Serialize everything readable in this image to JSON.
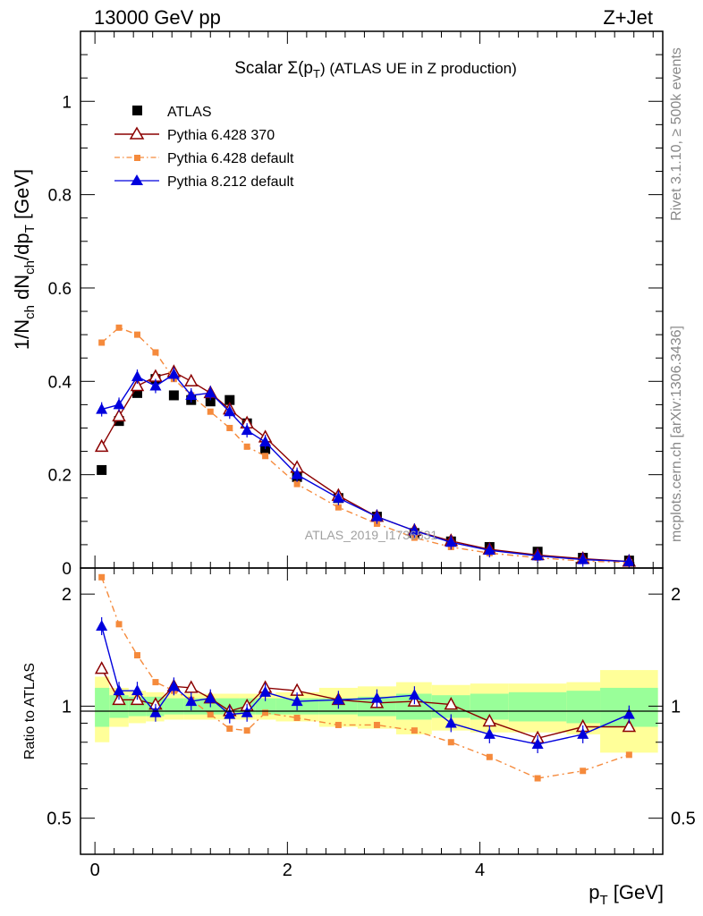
{
  "header": {
    "left": "13000 GeV pp",
    "right": "Z+Jet"
  },
  "side_labels": {
    "rivet": "Rivet 3.1.10, ≥ 500k events",
    "mcplots": "mcplots.cern.ch [arXiv:1306.3436]"
  },
  "watermark": "ATLAS_2019_I1736531",
  "colors": {
    "atlas": "#000000",
    "p6_370": "#8b0000",
    "p6_default": "#f58a3c",
    "p8": "#0000dd",
    "band_inner": "#99ff99",
    "band_outer": "#ffff99"
  },
  "chart_data": [
    {
      "type": "line",
      "panel": "main",
      "title": "Scalar Σ(pT) (ATLAS UE in Z production)",
      "title_main": "Scalar Σ(p",
      "title_sub": "T",
      "title_rest": ") (ATLAS UE in Z production)",
      "xlabel": "pT [GeV]",
      "xlabel_main": "p",
      "xlabel_sub": "T",
      "xlabel_rest": " [GeV]",
      "ylabel": "1/Nch dNch/dpT [GeV]",
      "xlim": [
        -0.15,
        5.9
      ],
      "ylim": [
        0,
        1.15
      ],
      "xticks": [
        0,
        2,
        4
      ],
      "yticks": [
        0.2,
        0.4,
        0.6,
        0.8,
        1
      ],
      "ytick_labels": [
        "0.2",
        "0.4",
        "0.6",
        "0.8",
        "1",
        "0"
      ],
      "x": [
        0.07,
        0.25,
        0.44,
        0.63,
        0.82,
        1.0,
        1.2,
        1.4,
        1.58,
        1.77,
        2.1,
        2.53,
        2.93,
        3.32,
        3.7,
        4.1,
        4.6,
        5.07,
        5.55
      ],
      "series": [
        {
          "name": "ATLAS",
          "key": "atlas",
          "marker": "square",
          "values": [
            0.21,
            0.315,
            0.375,
            0.405,
            0.37,
            0.36,
            0.357,
            0.36,
            0.31,
            0.255,
            0.195,
            0.15,
            0.11,
            0.075,
            0.057,
            0.045,
            0.035,
            0.022,
            0.016
          ]
        },
        {
          "name": "Pythia 6.428 370",
          "key": "p6_370",
          "marker": "triangle-open",
          "values": [
            0.26,
            0.325,
            0.39,
            0.41,
            0.42,
            0.4,
            0.375,
            0.34,
            0.31,
            0.28,
            0.215,
            0.155,
            0.11,
            0.08,
            0.058,
            0.04,
            0.028,
            0.02,
            0.014
          ]
        },
        {
          "name": "Pythia 6.428 default",
          "key": "p6_default",
          "marker": "square-small",
          "dash": true,
          "values": [
            0.483,
            0.515,
            0.5,
            0.462,
            0.405,
            0.37,
            0.335,
            0.3,
            0.26,
            0.24,
            0.18,
            0.13,
            0.095,
            0.065,
            0.045,
            0.032,
            0.022,
            0.015,
            0.012
          ]
        },
        {
          "name": "Pythia 8.212 default",
          "key": "p8",
          "marker": "triangle",
          "values": [
            0.34,
            0.35,
            0.41,
            0.39,
            0.415,
            0.37,
            0.375,
            0.335,
            0.295,
            0.27,
            0.2,
            0.15,
            0.11,
            0.08,
            0.055,
            0.038,
            0.026,
            0.018,
            0.014
          ]
        }
      ]
    },
    {
      "type": "line",
      "panel": "ratio",
      "ylabel": "Ratio to ATLAS",
      "xlim": [
        -0.15,
        5.9
      ],
      "ylim": [
        0.4,
        2.35
      ],
      "yscale": "log",
      "yticks": [
        0.5,
        1,
        2
      ],
      "ytick_labels": [
        "0.5",
        "1",
        "2"
      ],
      "xtick_labels": [
        "0",
        "2",
        "4"
      ],
      "bin_edges": [
        0.0,
        0.15,
        0.35,
        0.53,
        0.72,
        0.92,
        1.1,
        1.3,
        1.5,
        1.67,
        1.88,
        2.33,
        2.73,
        3.13,
        3.5,
        3.9,
        4.3,
        4.9,
        5.25,
        5.85
      ],
      "band_inner_half": [
        0.12,
        0.07,
        0.06,
        0.06,
        0.05,
        0.05,
        0.05,
        0.05,
        0.05,
        0.05,
        0.05,
        0.05,
        0.06,
        0.08,
        0.07,
        0.08,
        0.09,
        0.1,
        0.12
      ],
      "band_outer_half": [
        0.2,
        0.12,
        0.1,
        0.09,
        0.08,
        0.08,
        0.08,
        0.08,
        0.08,
        0.08,
        0.09,
        0.12,
        0.13,
        0.16,
        0.14,
        0.15,
        0.15,
        0.16,
        0.25
      ],
      "series": [
        {
          "name": "Pythia 6.428 370",
          "key": "p6_370",
          "values": [
            1.26,
            1.04,
            1.04,
            1.01,
            1.13,
            1.12,
            1.05,
            0.97,
            1.0,
            1.12,
            1.1,
            1.04,
            1.02,
            1.03,
            1.01,
            0.91,
            0.82,
            0.88,
            0.88
          ]
        },
        {
          "name": "Pythia 6.428 default",
          "key": "p6_default",
          "values": [
            2.22,
            1.66,
            1.37,
            1.16,
            1.1,
            1.04,
            0.95,
            0.87,
            0.86,
            0.96,
            0.93,
            0.89,
            0.89,
            0.86,
            0.8,
            0.73,
            0.64,
            0.67,
            0.74
          ]
        },
        {
          "name": "Pythia 8.212 default",
          "key": "p8",
          "values": [
            1.64,
            1.1,
            1.1,
            0.96,
            1.13,
            1.03,
            1.05,
            0.95,
            0.96,
            1.09,
            1.03,
            1.04,
            1.05,
            1.07,
            0.9,
            0.84,
            0.79,
            0.84,
            0.95
          ]
        }
      ]
    }
  ]
}
